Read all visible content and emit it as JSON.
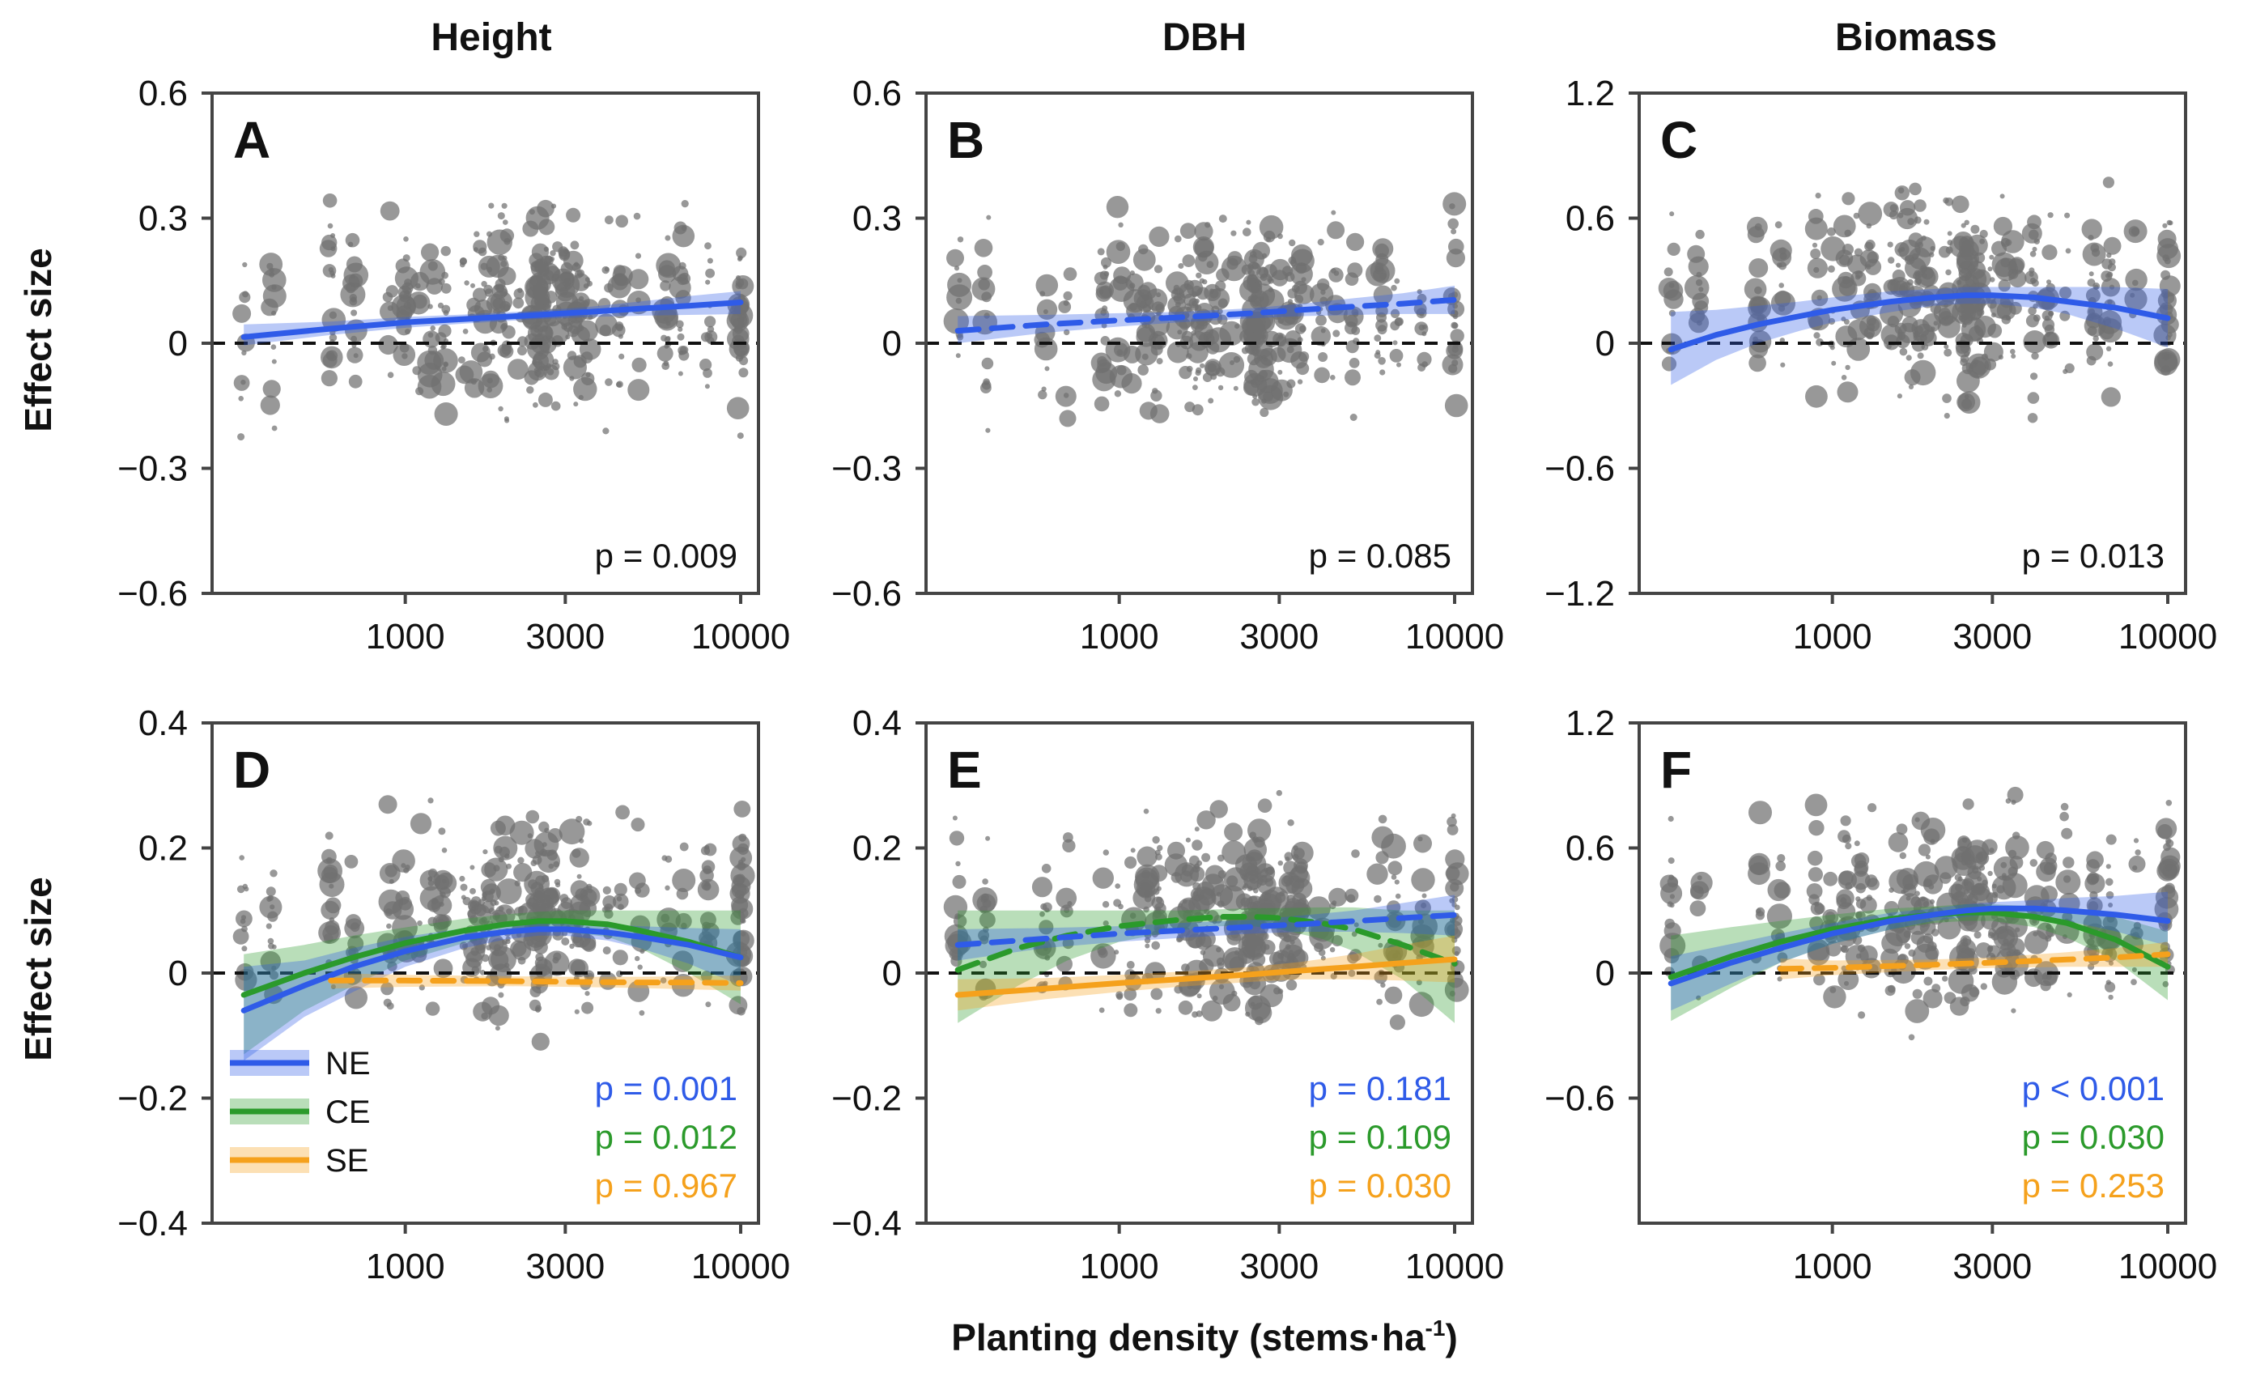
{
  "figure": {
    "column_titles": [
      "Height",
      "DBH",
      "Biomass"
    ],
    "ylabel": "Effect size",
    "xlabel": "Planting density (stems·ha",
    "xlabel_sup": "-1",
    "xlabel_close": ")",
    "colors": {
      "NE": "#2f5be8",
      "CE": "#2b9a2b",
      "SE": "#f5a11c",
      "points": "#707070",
      "zero_line": "#111111"
    },
    "legend": [
      {
        "key": "NE",
        "label": "NE"
      },
      {
        "key": "CE",
        "label": "CE"
      },
      {
        "key": "SE",
        "label": "SE"
      }
    ]
  },
  "chart_data": [
    {
      "panel": "A",
      "column": "Height",
      "type": "scatter",
      "xscale": "log",
      "xlim": [
        300,
        10000
      ],
      "xticks": [
        1000,
        3000,
        10000
      ],
      "xtick_labels": [
        "1000",
        "3000",
        "10000"
      ],
      "ylim": [
        -0.6,
        0.6
      ],
      "yticks": [
        -0.6,
        -0.3,
        0,
        0.3,
        0.6
      ],
      "ytick_labels": [
        "−0.6",
        "−0.3",
        "0",
        "0.3",
        "0.6"
      ],
      "series": [
        {
          "key": "NE",
          "style": "solid",
          "x": [
            330,
            600,
            1000,
            1500,
            2500,
            3500,
            5000,
            7000,
            10000
          ],
          "y": [
            0.015,
            0.035,
            0.05,
            0.058,
            0.068,
            0.075,
            0.083,
            0.09,
            0.098
          ],
          "ci_low": [
            -0.005,
            0.02,
            0.037,
            0.047,
            0.058,
            0.063,
            0.066,
            0.068,
            0.07
          ],
          "ci_high": [
            0.045,
            0.052,
            0.063,
            0.069,
            0.078,
            0.087,
            0.1,
            0.113,
            0.125
          ]
        }
      ],
      "pvalues": [
        {
          "key": "text",
          "label": "p = 0.009"
        }
      ]
    },
    {
      "panel": "B",
      "column": "DBH",
      "type": "scatter",
      "xscale": "log",
      "xlim": [
        300,
        10000
      ],
      "xticks": [
        1000,
        3000,
        10000
      ],
      "xtick_labels": [
        "1000",
        "3000",
        "10000"
      ],
      "ylim": [
        -0.6,
        0.6
      ],
      "yticks": [
        -0.6,
        -0.3,
        0,
        0.3,
        0.6
      ],
      "ytick_labels": [
        "−0.6",
        "−0.3",
        "0",
        "0.3",
        "0.6"
      ],
      "series": [
        {
          "key": "NE",
          "style": "dashed",
          "x": [
            330,
            600,
            1000,
            1500,
            2500,
            3500,
            5000,
            7000,
            10000
          ],
          "y": [
            0.03,
            0.045,
            0.055,
            0.062,
            0.072,
            0.08,
            0.088,
            0.095,
            0.104
          ],
          "ci_low": [
            0.0,
            0.025,
            0.04,
            0.05,
            0.06,
            0.065,
            0.068,
            0.07,
            0.07
          ],
          "ci_high": [
            0.065,
            0.068,
            0.072,
            0.075,
            0.084,
            0.095,
            0.108,
            0.12,
            0.138
          ]
        }
      ],
      "pvalues": [
        {
          "key": "text",
          "label": "p = 0.085"
        }
      ]
    },
    {
      "panel": "C",
      "column": "Biomass",
      "type": "scatter",
      "xscale": "log",
      "xlim": [
        300,
        10000
      ],
      "xticks": [
        1000,
        3000,
        10000
      ],
      "xtick_labels": [
        "1000",
        "3000",
        "10000"
      ],
      "ylim": [
        -1.2,
        1.2
      ],
      "yticks": [
        -1.2,
        -0.6,
        0,
        0.6,
        1.2
      ],
      "ytick_labels": [
        "−1.2",
        "−0.6",
        "0",
        "0.6",
        "1.2"
      ],
      "series": [
        {
          "key": "NE",
          "style": "solid",
          "x": [
            330,
            450,
            600,
            800,
            1000,
            1500,
            2000,
            2500,
            3000,
            4000,
            5000,
            7000,
            10000
          ],
          "y": [
            -0.03,
            0.04,
            0.09,
            0.13,
            0.16,
            0.2,
            0.22,
            0.23,
            0.23,
            0.22,
            0.2,
            0.17,
            0.12
          ],
          "ci_low": [
            -0.2,
            -0.08,
            0.0,
            0.06,
            0.1,
            0.15,
            0.18,
            0.19,
            0.19,
            0.17,
            0.14,
            0.07,
            -0.02
          ],
          "ci_high": [
            0.15,
            0.16,
            0.18,
            0.2,
            0.22,
            0.25,
            0.26,
            0.27,
            0.27,
            0.27,
            0.27,
            0.27,
            0.26
          ]
        }
      ],
      "pvalues": [
        {
          "key": "text",
          "label": "p = 0.013"
        }
      ]
    },
    {
      "panel": "D",
      "column": "Height",
      "type": "scatter",
      "xscale": "log",
      "xlim": [
        300,
        10000
      ],
      "xticks": [
        1000,
        3000,
        10000
      ],
      "xtick_labels": [
        "1000",
        "3000",
        "10000"
      ],
      "ylim": [
        -0.4,
        0.4
      ],
      "yticks": [
        -0.4,
        -0.2,
        0,
        0.2,
        0.4
      ],
      "ytick_labels": [
        "−0.4",
        "−0.2",
        "0",
        "0.2",
        "0.4"
      ],
      "series": [
        {
          "key": "CE",
          "style": "solid",
          "x": [
            330,
            500,
            700,
            1000,
            1500,
            2000,
            2500,
            3000,
            4000,
            5000,
            7000,
            10000
          ],
          "y": [
            -0.035,
            0.0,
            0.025,
            0.048,
            0.068,
            0.078,
            0.083,
            0.083,
            0.078,
            0.068,
            0.05,
            0.025
          ],
          "ci_low": [
            -0.13,
            -0.06,
            -0.02,
            0.02,
            0.048,
            0.062,
            0.068,
            0.066,
            0.058,
            0.04,
            0.0,
            -0.05
          ],
          "ci_high": [
            0.03,
            0.045,
            0.06,
            0.073,
            0.087,
            0.094,
            0.098,
            0.1,
            0.1,
            0.1,
            0.1,
            0.1
          ]
        },
        {
          "key": "NE",
          "style": "solid",
          "x": [
            330,
            500,
            700,
            1000,
            1500,
            2000,
            2500,
            3000,
            4000,
            5000,
            7000,
            10000
          ],
          "y": [
            -0.06,
            -0.02,
            0.01,
            0.035,
            0.057,
            0.066,
            0.07,
            0.07,
            0.065,
            0.058,
            0.045,
            0.025
          ],
          "ci_low": [
            -0.14,
            -0.07,
            -0.03,
            0.01,
            0.04,
            0.054,
            0.06,
            0.06,
            0.052,
            0.04,
            0.015,
            -0.02
          ],
          "ci_high": [
            0.01,
            0.02,
            0.04,
            0.058,
            0.072,
            0.078,
            0.08,
            0.08,
            0.078,
            0.075,
            0.072,
            0.07
          ]
        },
        {
          "key": "SE",
          "style": "dashed",
          "x": [
            600,
            1000,
            2000,
            3000,
            5000,
            7000,
            10000
          ],
          "y": [
            -0.012,
            -0.012,
            -0.013,
            -0.014,
            -0.015,
            -0.015,
            -0.016
          ],
          "ci_low": [
            -0.025,
            -0.022,
            -0.021,
            -0.022,
            -0.024,
            -0.026,
            -0.028
          ],
          "ci_high": [
            0.0,
            -0.003,
            -0.005,
            -0.006,
            -0.006,
            -0.005,
            -0.004
          ]
        }
      ],
      "pvalues": [
        {
          "key": "NE",
          "label": "p = 0.001"
        },
        {
          "key": "CE",
          "label": "p = 0.012"
        },
        {
          "key": "SE",
          "label": "p = 0.967"
        }
      ],
      "show_legend": true
    },
    {
      "panel": "E",
      "column": "DBH",
      "type": "scatter",
      "xscale": "log",
      "xlim": [
        300,
        10000
      ],
      "xticks": [
        1000,
        3000,
        10000
      ],
      "xtick_labels": [
        "1000",
        "3000",
        "10000"
      ],
      "ylim": [
        -0.4,
        0.4
      ],
      "yticks": [
        -0.4,
        -0.2,
        0,
        0.2,
        0.4
      ],
      "ytick_labels": [
        "−0.4",
        "−0.2",
        "0",
        "0.2",
        "0.4"
      ],
      "series": [
        {
          "key": "CE",
          "style": "dashed",
          "x": [
            330,
            500,
            700,
            1000,
            1500,
            2000,
            2500,
            3000,
            4000,
            5000,
            7000,
            10000
          ],
          "y": [
            0.005,
            0.04,
            0.06,
            0.075,
            0.085,
            0.09,
            0.09,
            0.088,
            0.08,
            0.07,
            0.045,
            0.015
          ],
          "ci_low": [
            -0.08,
            -0.02,
            0.02,
            0.05,
            0.068,
            0.075,
            0.075,
            0.07,
            0.055,
            0.035,
            -0.01,
            -0.08
          ],
          "ci_high": [
            0.1,
            0.1,
            0.1,
            0.1,
            0.1,
            0.102,
            0.104,
            0.104,
            0.105,
            0.105,
            0.1,
            0.1
          ]
        },
        {
          "key": "NE",
          "style": "dashed",
          "x": [
            330,
            600,
            1000,
            1500,
            2500,
            3500,
            5000,
            7000,
            10000
          ],
          "y": [
            0.045,
            0.055,
            0.063,
            0.068,
            0.074,
            0.078,
            0.083,
            0.088,
            0.093
          ],
          "ci_low": [
            0.02,
            0.04,
            0.05,
            0.056,
            0.063,
            0.066,
            0.066,
            0.064,
            0.06
          ],
          "ci_high": [
            0.07,
            0.072,
            0.075,
            0.08,
            0.085,
            0.092,
            0.1,
            0.112,
            0.125
          ]
        },
        {
          "key": "SE",
          "style": "solid",
          "x": [
            330,
            600,
            1000,
            1500,
            2500,
            3500,
            5000,
            7000,
            10000
          ],
          "y": [
            -0.035,
            -0.025,
            -0.016,
            -0.01,
            -0.002,
            0.004,
            0.01,
            0.016,
            0.022
          ],
          "ci_low": [
            -0.06,
            -0.042,
            -0.03,
            -0.022,
            -0.014,
            -0.01,
            -0.01,
            -0.012,
            -0.015
          ],
          "ci_high": [
            -0.01,
            -0.008,
            -0.003,
            0.002,
            0.01,
            0.018,
            0.03,
            0.045,
            0.06
          ]
        }
      ],
      "pvalues": [
        {
          "key": "NE",
          "label": "p = 0.181"
        },
        {
          "key": "CE",
          "label": "p = 0.109"
        },
        {
          "key": "SE",
          "label": "p = 0.030"
        }
      ]
    },
    {
      "panel": "F",
      "column": "Biomass",
      "type": "scatter",
      "xscale": "log",
      "xlim": [
        300,
        10000
      ],
      "xticks": [
        1000,
        3000,
        10000
      ],
      "xtick_labels": [
        "1000",
        "3000",
        "10000"
      ],
      "ylim": [
        -1.2,
        1.2
      ],
      "yticks": [
        -0.6,
        0,
        0.6,
        1.2
      ],
      "ytick_labels": [
        "−0.6",
        "0",
        "0.6",
        "1.2"
      ],
      "series": [
        {
          "key": "CE",
          "style": "solid",
          "x": [
            330,
            500,
            700,
            1000,
            1500,
            2000,
            2500,
            3000,
            4000,
            5000,
            7000,
            10000
          ],
          "y": [
            -0.02,
            0.08,
            0.15,
            0.21,
            0.26,
            0.28,
            0.29,
            0.29,
            0.27,
            0.24,
            0.16,
            0.03
          ],
          "ci_low": [
            -0.23,
            -0.07,
            0.05,
            0.14,
            0.21,
            0.24,
            0.25,
            0.25,
            0.22,
            0.17,
            0.06,
            -0.13
          ],
          "ci_high": [
            0.18,
            0.22,
            0.25,
            0.28,
            0.31,
            0.32,
            0.33,
            0.33,
            0.32,
            0.31,
            0.27,
            0.2
          ]
        },
        {
          "key": "NE",
          "style": "solid",
          "x": [
            330,
            500,
            700,
            1000,
            1500,
            2000,
            2500,
            3000,
            4000,
            5000,
            7000,
            10000
          ],
          "y": [
            -0.05,
            0.05,
            0.12,
            0.19,
            0.25,
            0.28,
            0.3,
            0.31,
            0.31,
            0.3,
            0.28,
            0.25
          ],
          "ci_low": [
            -0.18,
            -0.05,
            0.05,
            0.14,
            0.21,
            0.25,
            0.27,
            0.28,
            0.27,
            0.25,
            0.2,
            0.13
          ],
          "ci_high": [
            0.08,
            0.14,
            0.19,
            0.24,
            0.29,
            0.31,
            0.33,
            0.34,
            0.35,
            0.36,
            0.37,
            0.39
          ]
        },
        {
          "key": "SE",
          "style": "dashed",
          "x": [
            700,
            1000,
            2000,
            3000,
            5000,
            7000,
            10000
          ],
          "y": [
            0.02,
            0.025,
            0.04,
            0.05,
            0.065,
            0.075,
            0.09
          ],
          "ci_low": [
            -0.03,
            -0.01,
            0.015,
            0.025,
            0.03,
            0.03,
            0.03
          ],
          "ci_high": [
            0.07,
            0.06,
            0.065,
            0.075,
            0.1,
            0.12,
            0.15
          ]
        }
      ],
      "pvalues": [
        {
          "key": "NE",
          "label": "p < 0.001"
        },
        {
          "key": "CE",
          "label": "p = 0.030"
        },
        {
          "key": "SE",
          "label": "p = 0.253"
        }
      ]
    }
  ]
}
